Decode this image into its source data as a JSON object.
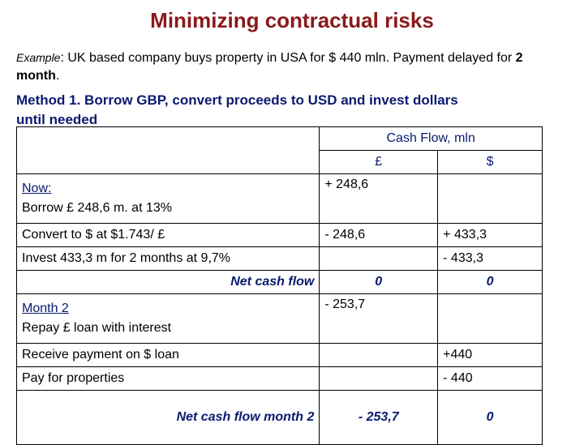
{
  "title": "Minimizing contractual risks",
  "example": {
    "label": "Example",
    "text1": ": UK based company buys property in USA  for $ 440 mln.  Payment delayed for ",
    "bold_text": "2 month",
    "text2": "."
  },
  "method": {
    "line1": "Method 1. Borrow GBP, convert proceeds to USD and invest dollars",
    "line2": "until needed"
  },
  "table": {
    "header": "Cash Flow, mln",
    "col_gbp": "£",
    "col_usd": "$",
    "rows": {
      "now_label": "Now:",
      "borrow_label": "Borrow £ 248,6 m. at 13%",
      "borrow_gbp": "+ 248,6",
      "convert_label": "Convert to $ at $1.743/ £",
      "convert_gbp": "- 248,6",
      "convert_usd": "+ 433,3",
      "invest_label": "Invest 433,3 m for 2 months at 9,7%",
      "invest_usd": "- 433,3",
      "net_label": "Net cash flow",
      "net_gbp": "0",
      "net_usd": "0",
      "month2_label": "Month 2",
      "repay_label": "Repay £ loan with interest",
      "repay_gbp": "- 253,7",
      "receive_label": "Receive payment on $ loan",
      "receive_usd": "+440",
      "pay_label": "Pay for properties",
      "pay_usd": "- 440",
      "net2_label": "Net cash flow month 2",
      "net2_gbp": "- 253,7",
      "net2_usd": "0"
    }
  }
}
